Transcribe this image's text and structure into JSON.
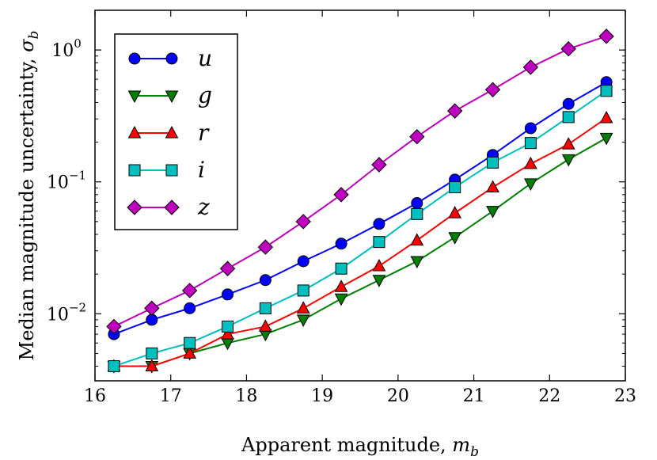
{
  "chart_data": {
    "type": "line",
    "title": "",
    "xlabel": "Apparent magnitude, m_b",
    "xlabel_main": "Apparent magnitude, ",
    "xlabel_symbol": "m",
    "xlabel_sub": "b",
    "ylabel": "Median magnitude uncertainty, σ_b",
    "ylabel_main": "Median magnitude uncertainty, ",
    "ylabel_symbol": "σ",
    "ylabel_sub": "b",
    "xlim": [
      16,
      23
    ],
    "ylim": [
      0.0031,
      2.0
    ],
    "yscale": "log",
    "xticks": [
      16,
      17,
      18,
      19,
      20,
      21,
      22,
      23
    ],
    "xtick_labels": [
      "16",
      "17",
      "18",
      "19",
      "20",
      "21",
      "22",
      "23"
    ],
    "yticks": [
      {
        "value": 0.01,
        "base": "10",
        "exp": "−2"
      },
      {
        "value": 0.1,
        "base": "10",
        "exp": "−1"
      },
      {
        "value": 1,
        "base": "10",
        "exp": "0"
      }
    ],
    "legend_position": "top-left",
    "x": [
      16.25,
      16.75,
      17.25,
      17.75,
      18.25,
      18.75,
      19.25,
      19.75,
      20.25,
      20.75,
      21.25,
      21.75,
      22.25,
      22.75
    ],
    "series": [
      {
        "name": "u",
        "color": "#0000ff",
        "marker": "circle",
        "values": [
          0.007,
          0.009,
          0.011,
          0.014,
          0.018,
          0.025,
          0.034,
          0.048,
          0.069,
          0.104,
          0.16,
          0.255,
          0.39,
          0.57
        ]
      },
      {
        "name": "g",
        "color": "#008000",
        "marker": "triangle-down",
        "values": [
          0.004,
          0.004,
          0.005,
          0.006,
          0.007,
          0.009,
          0.013,
          0.018,
          0.025,
          0.038,
          0.06,
          0.097,
          0.148,
          0.215
        ]
      },
      {
        "name": "r",
        "color": "#ff0000",
        "marker": "triangle-up",
        "values": [
          0.004,
          0.004,
          0.005,
          0.007,
          0.008,
          0.011,
          0.016,
          0.023,
          0.036,
          0.058,
          0.091,
          0.137,
          0.193,
          0.305
        ]
      },
      {
        "name": "i",
        "color": "#00bfbf",
        "marker": "square",
        "values": [
          0.004,
          0.005,
          0.006,
          0.008,
          0.011,
          0.015,
          0.022,
          0.035,
          0.057,
          0.091,
          0.14,
          0.197,
          0.31,
          0.49
        ]
      },
      {
        "name": "z",
        "color": "#bf00bf",
        "marker": "diamond",
        "values": [
          0.008,
          0.011,
          0.015,
          0.022,
          0.032,
          0.05,
          0.08,
          0.135,
          0.22,
          0.345,
          0.5,
          0.74,
          1.02,
          1.27
        ]
      }
    ]
  }
}
